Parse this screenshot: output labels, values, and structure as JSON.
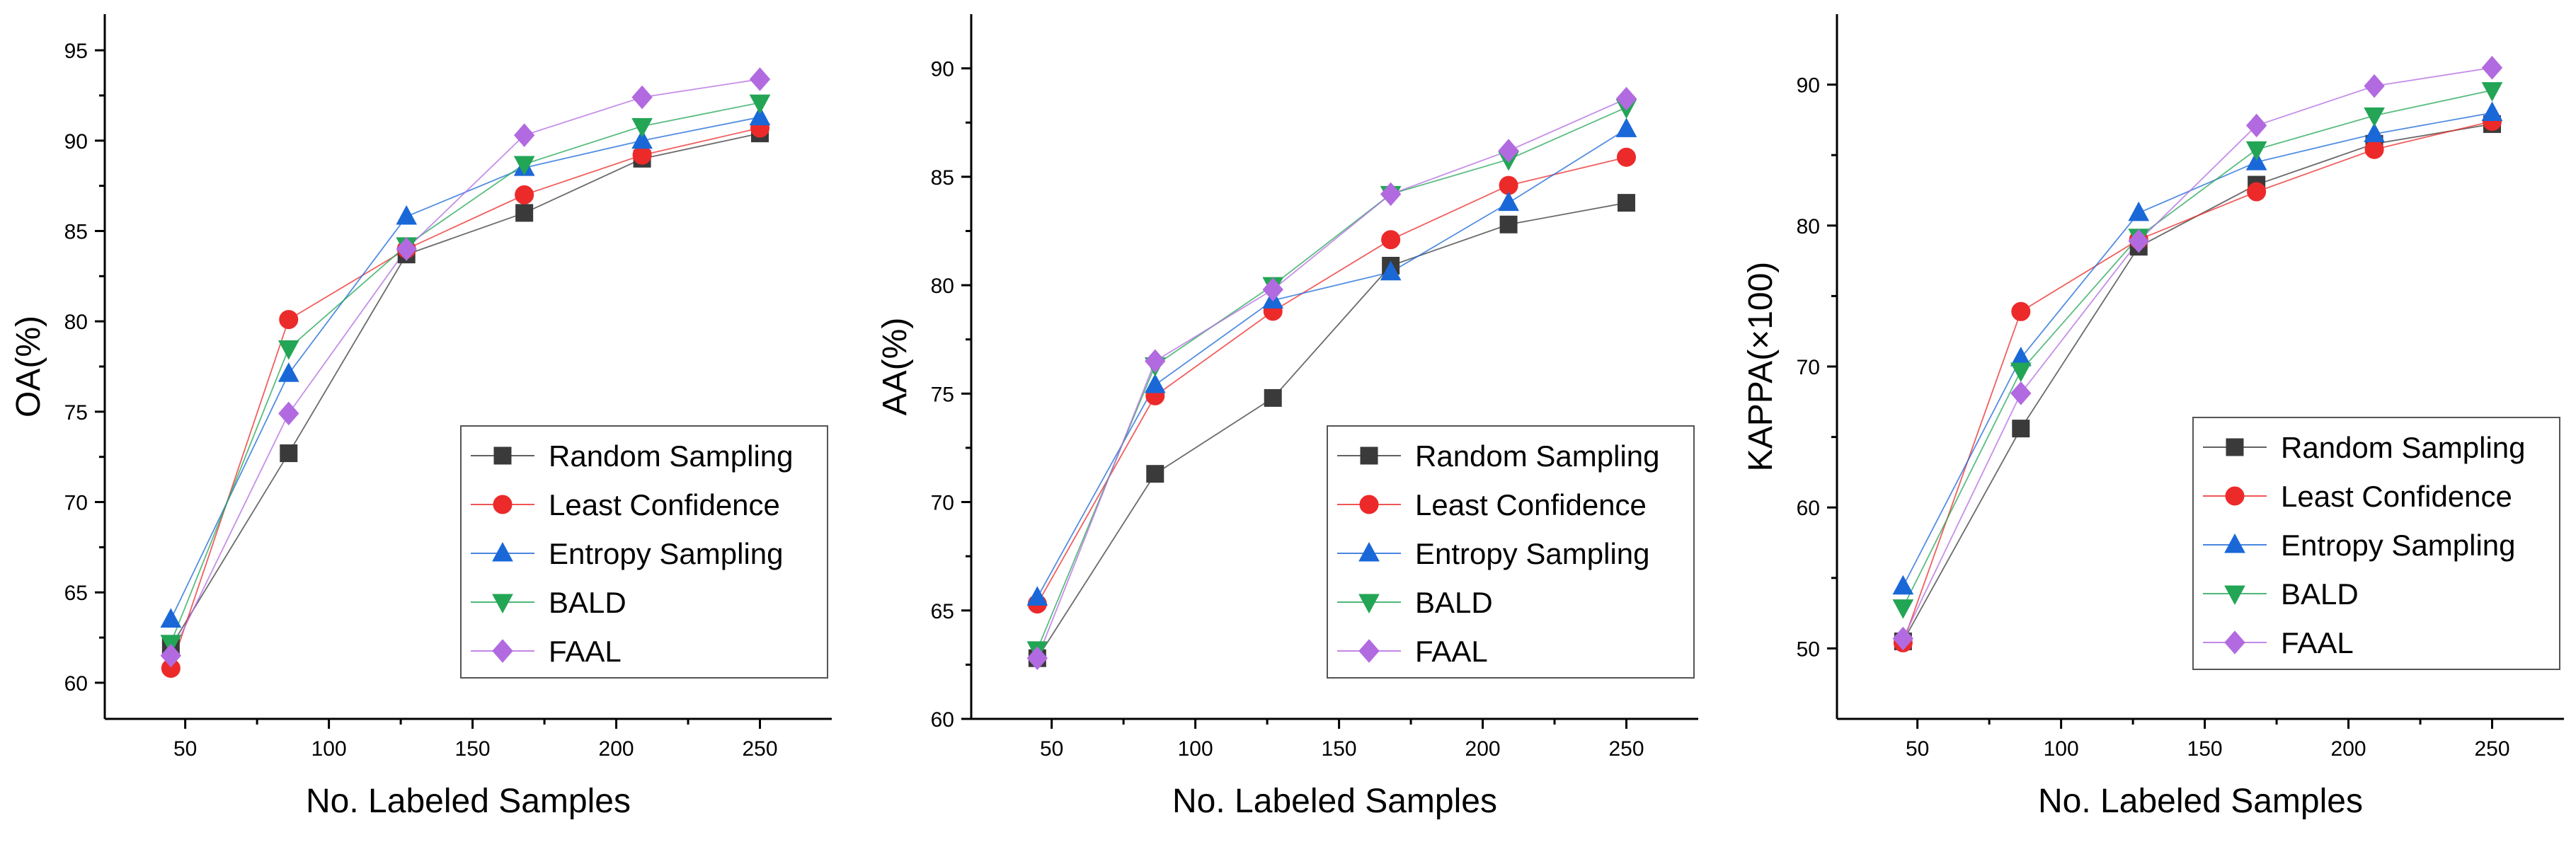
{
  "chart_data": [
    {
      "type": "line",
      "x": [
        45,
        86,
        127,
        168,
        209,
        250
      ],
      "xlabel": "No. Labeled Samples",
      "ylabel": "OA(%)",
      "xlim": [
        22,
        275
      ],
      "ylim": [
        58,
        97
      ],
      "xticks": [
        50,
        100,
        150,
        200,
        250
      ],
      "yticks": [
        60,
        65,
        70,
        75,
        80,
        85,
        90,
        95
      ],
      "legend_position": "bottom-right",
      "series": [
        {
          "name": "Random Sampling",
          "values": [
            62.0,
            72.7,
            83.7,
            86.0,
            89.0,
            90.4
          ]
        },
        {
          "name": "Least Confidence",
          "values": [
            60.8,
            80.1,
            84.0,
            87.0,
            89.2,
            90.7
          ]
        },
        {
          "name": "Entropy Sampling",
          "values": [
            63.5,
            77.1,
            85.8,
            88.5,
            90.0,
            91.3
          ]
        },
        {
          "name": "BALD",
          "values": [
            62.2,
            78.5,
            84.2,
            88.7,
            90.8,
            92.1
          ]
        },
        {
          "name": "FAAL",
          "values": [
            61.5,
            74.9,
            84.0,
            90.3,
            92.4,
            93.4
          ]
        }
      ]
    },
    {
      "type": "line",
      "x": [
        45,
        86,
        127,
        168,
        209,
        250
      ],
      "xlabel": "No. Labeled Samples",
      "ylabel": "AA(%)",
      "xlim": [
        22,
        275
      ],
      "ylim": [
        60,
        92.5
      ],
      "xticks": [
        50,
        100,
        150,
        200,
        250
      ],
      "yticks": [
        60,
        65,
        70,
        75,
        80,
        85,
        90
      ],
      "legend_position": "bottom-right",
      "series": [
        {
          "name": "Random Sampling",
          "values": [
            62.8,
            71.3,
            74.8,
            80.9,
            82.8,
            83.8
          ]
        },
        {
          "name": "Least Confidence",
          "values": [
            65.3,
            74.9,
            78.8,
            82.1,
            84.6,
            85.9
          ]
        },
        {
          "name": "Entropy Sampling",
          "values": [
            65.6,
            75.4,
            79.3,
            80.6,
            83.8,
            87.2
          ]
        },
        {
          "name": "BALD",
          "values": [
            63.2,
            76.3,
            80.0,
            84.2,
            85.8,
            88.2
          ]
        },
        {
          "name": "FAAL",
          "values": [
            62.8,
            76.5,
            79.8,
            84.2,
            86.2,
            88.6
          ]
        }
      ]
    },
    {
      "type": "line",
      "x": [
        45,
        86,
        127,
        168,
        209,
        250
      ],
      "xlabel": "No. Labeled Samples",
      "ylabel": "KAPPA(×100)",
      "xlim": [
        22,
        275
      ],
      "ylim": [
        45,
        95
      ],
      "xticks": [
        50,
        100,
        150,
        200,
        250
      ],
      "yticks": [
        50,
        60,
        70,
        80,
        90
      ],
      "legend_position": "bottom-right",
      "series": [
        {
          "name": "Random Sampling",
          "values": [
            50.5,
            65.6,
            78.5,
            82.9,
            85.8,
            87.2
          ]
        },
        {
          "name": "Least Confidence",
          "values": [
            50.4,
            73.9,
            79.0,
            82.4,
            85.4,
            87.4
          ]
        },
        {
          "name": "Entropy Sampling",
          "values": [
            54.4,
            70.6,
            80.9,
            84.5,
            86.5,
            88.0
          ]
        },
        {
          "name": "BALD",
          "values": [
            52.9,
            69.7,
            79.2,
            85.4,
            87.8,
            89.6
          ]
        },
        {
          "name": "FAAL",
          "values": [
            50.7,
            68.1,
            78.9,
            87.1,
            89.9,
            91.2
          ]
        }
      ]
    }
  ],
  "series_styles": [
    {
      "name": "Random Sampling",
      "color": "#3a3a3a",
      "marker": "square"
    },
    {
      "name": "Least Confidence",
      "color": "#ec2a2a",
      "marker": "circle"
    },
    {
      "name": "Entropy Sampling",
      "color": "#1a68d8",
      "marker": "triangle-up"
    },
    {
      "name": "BALD",
      "color": "#23a556",
      "marker": "triangle-down"
    },
    {
      "name": "FAAL",
      "color": "#b26ae0",
      "marker": "diamond"
    }
  ]
}
